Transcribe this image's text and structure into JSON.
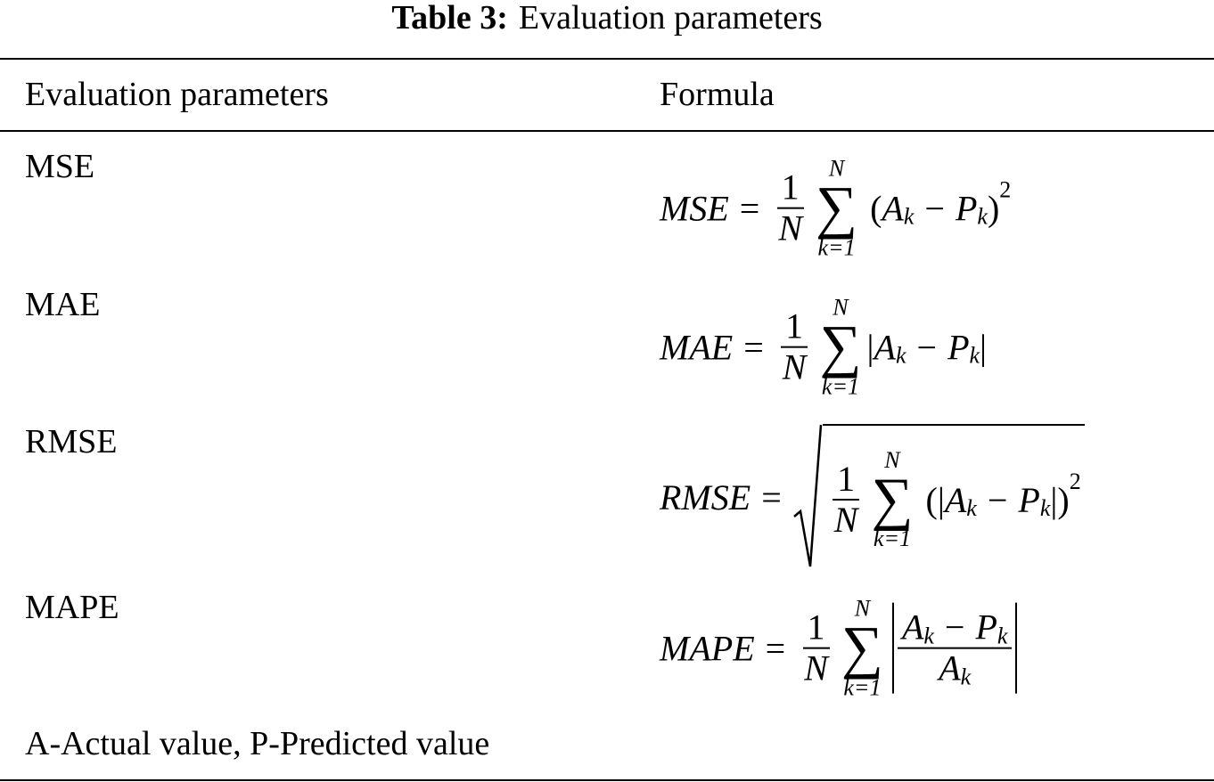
{
  "caption": {
    "label": "Table 3:",
    "text": "Evaluation parameters"
  },
  "table": {
    "header": [
      "Evaluation parameters",
      "Formula"
    ],
    "rows": [
      {
        "parameter": "MSE",
        "formula": {
          "lhs": "MSE",
          "equals": "=",
          "numerator": "1",
          "denominator": "N",
          "sum_upper": "N",
          "sum_symbol": "∑",
          "sum_lower": "k=1",
          "body": [
            "(",
            "A",
            "k",
            "−",
            "P",
            "k",
            ")",
            "2"
          ]
        }
      },
      {
        "parameter": "MAE",
        "formula": {
          "lhs": "MAE",
          "equals": "=",
          "numerator": "1",
          "denominator": "N",
          "sum_upper": "N",
          "sum_symbol": "∑",
          "sum_lower": "k=1",
          "body": [
            "|",
            "A",
            "k",
            "−",
            "P",
            "k",
            "|"
          ]
        }
      },
      {
        "parameter": "RMSE",
        "formula": {
          "lhs": "RMSE",
          "equals": "=",
          "numerator": "1",
          "denominator": "N",
          "sum_upper": "N",
          "sum_symbol": "∑",
          "sum_lower": "k=1",
          "body": [
            "(",
            "|",
            "A",
            "k",
            "−",
            "P",
            "k",
            "|",
            ")",
            "2"
          ]
        }
      },
      {
        "parameter": "MAPE",
        "formula": {
          "lhs": "MAPE",
          "equals": "=",
          "numerator": "1",
          "denominator": "N",
          "sum_upper": "N",
          "sum_symbol": "∑",
          "sum_lower": "k=1",
          "body": [
            "A",
            "k",
            "−",
            "P",
            "k",
            "A",
            "k"
          ]
        }
      }
    ]
  },
  "footnote": "A-Actual value, P-Predicted value"
}
